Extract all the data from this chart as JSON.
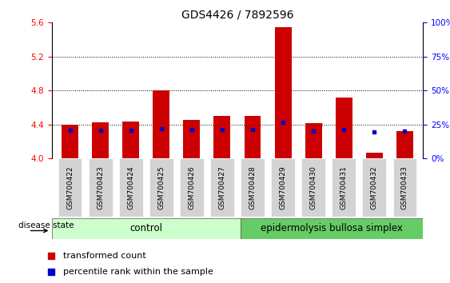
{
  "title": "GDS4426 / 7892596",
  "samples": [
    "GSM700422",
    "GSM700423",
    "GSM700424",
    "GSM700425",
    "GSM700426",
    "GSM700427",
    "GSM700428",
    "GSM700429",
    "GSM700430",
    "GSM700431",
    "GSM700432",
    "GSM700433"
  ],
  "transformed_counts": [
    4.4,
    4.43,
    4.44,
    4.8,
    4.45,
    4.5,
    4.5,
    5.55,
    4.42,
    4.72,
    4.07,
    4.32
  ],
  "percentile_values": [
    4.33,
    4.33,
    4.33,
    4.35,
    4.34,
    4.34,
    4.34,
    4.43,
    4.32,
    4.34,
    4.31,
    4.32
  ],
  "bar_color": "#cc0000",
  "blue_color": "#0000cc",
  "ylim_left": [
    4.0,
    5.6
  ],
  "ylim_right": [
    0,
    100
  ],
  "yticks_left": [
    4.0,
    4.4,
    4.8,
    5.2,
    5.6
  ],
  "yticks_right": [
    0,
    25,
    50,
    75,
    100
  ],
  "ytick_labels_right": [
    "0%",
    "25%",
    "50%",
    "75%",
    "100%"
  ],
  "grid_values": [
    4.4,
    4.8,
    5.2
  ],
  "control_samples": 6,
  "control_label": "control",
  "disease_label": "epidermolysis bullosa simplex",
  "disease_state_label": "disease state",
  "legend_red": "transformed count",
  "legend_blue": "percentile rank within the sample",
  "control_color": "#ccffcc",
  "disease_color": "#66cc66",
  "bar_width": 0.55,
  "base_value": 4.0,
  "title_fontsize": 10,
  "tick_fontsize": 7.5,
  "label_fontsize": 8,
  "legend_fontsize": 8
}
